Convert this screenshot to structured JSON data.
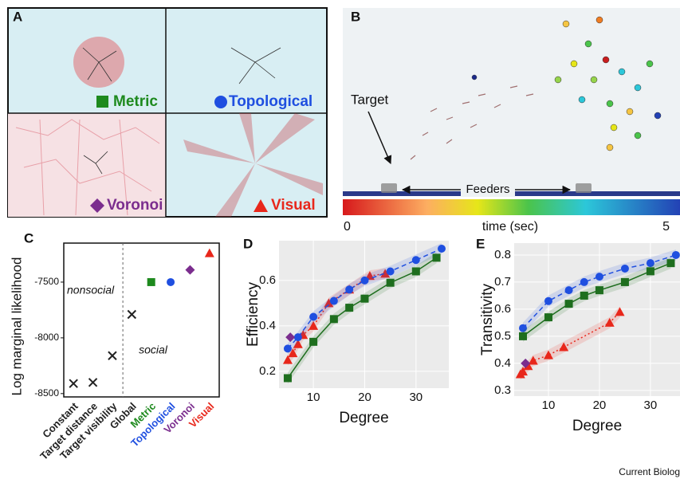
{
  "panels": {
    "a": {
      "letter": "A",
      "labels": [
        "Metric",
        "Topological",
        "Voronoi",
        "Visual"
      ]
    },
    "b": {
      "letter": "B",
      "target": "Target",
      "feeders": "Feeders",
      "colorbar": {
        "min": 0,
        "label": "time (sec)",
        "max": 5
      }
    }
  },
  "credit": "Current Biolog",
  "chart_data": [
    {
      "type": "dot",
      "letter": "C",
      "ylabel": "Log marginal likelihood",
      "categories": [
        "Constant",
        "Target distance",
        "Target visibility",
        "Global",
        "Metric",
        "Topological",
        "Voronoi",
        "Visual"
      ],
      "values": [
        -8410,
        -8400,
        -8160,
        -7790,
        -7500,
        -7500,
        -7390,
        -7240
      ],
      "markers": [
        "cross",
        "cross",
        "cross",
        "cross",
        "square",
        "circle",
        "diamond",
        "triangle"
      ],
      "colors": [
        "#222222",
        "#222222",
        "#222222",
        "#222222",
        "#1e8a1e",
        "#1f4fe0",
        "#7b2d8e",
        "#e8271b"
      ],
      "annotations": [
        "nonsocial",
        "social"
      ],
      "ylim": [
        -8530,
        -7150
      ],
      "yticks": [
        -8500,
        -8000,
        -7500
      ]
    },
    {
      "type": "line",
      "letter": "D",
      "xlabel": "Degree",
      "ylabel": "Efficiency",
      "xlim": [
        3.3,
        36.4
      ],
      "xticks": [
        10,
        20,
        30
      ],
      "ylim": [
        0.126,
        0.775
      ],
      "yticks": [
        0.2,
        0.4,
        0.6
      ],
      "grid": true,
      "series": [
        {
          "marker": "triangle",
          "color": "#e8271b",
          "dash": "dotted",
          "x": [
            5,
            6,
            7,
            8,
            10,
            13,
            17,
            21,
            24
          ],
          "values": [
            0.25,
            0.28,
            0.32,
            0.36,
            0.4,
            0.5,
            0.56,
            0.62,
            0.63
          ]
        },
        {
          "marker": "circle",
          "color": "#1f4fe0",
          "dash": "dashed",
          "x": [
            5,
            7,
            10,
            14,
            17,
            20,
            25,
            30,
            35
          ],
          "values": [
            0.3,
            0.35,
            0.44,
            0.51,
            0.56,
            0.6,
            0.64,
            0.69,
            0.74
          ]
        },
        {
          "marker": "square",
          "color": "#1e6e1e",
          "dash": "solid",
          "x": [
            5,
            10,
            14,
            17,
            20,
            25,
            30,
            34
          ],
          "values": [
            0.17,
            0.33,
            0.43,
            0.48,
            0.52,
            0.59,
            0.64,
            0.7
          ]
        },
        {
          "marker": "diamond",
          "color": "#7b2d8e",
          "dash": "solid",
          "x": [
            5.5
          ],
          "values": [
            0.35
          ]
        }
      ]
    },
    {
      "type": "line",
      "letter": "E",
      "xlabel": "Degree",
      "ylabel": "Transitivity",
      "xlim": [
        3.28,
        35.8
      ],
      "xticks": [
        10,
        20,
        30
      ],
      "ylim": [
        0.279,
        0.844
      ],
      "yticks": [
        0.3,
        0.4,
        0.5,
        0.6,
        0.7,
        0.8
      ],
      "grid": true,
      "series": [
        {
          "marker": "circle",
          "color": "#1f4fe0",
          "dash": "dashed",
          "x": [
            5,
            10,
            14,
            17,
            20,
            25,
            30,
            35
          ],
          "values": [
            0.53,
            0.63,
            0.67,
            0.7,
            0.72,
            0.75,
            0.77,
            0.8
          ]
        },
        {
          "marker": "square",
          "color": "#1e6e1e",
          "dash": "solid",
          "x": [
            5,
            10,
            14,
            17,
            20,
            25,
            30,
            34
          ],
          "values": [
            0.5,
            0.57,
            0.62,
            0.65,
            0.67,
            0.7,
            0.74,
            0.77
          ]
        },
        {
          "marker": "triangle",
          "color": "#e8271b",
          "dash": "dotted",
          "x": [
            4.5,
            5,
            6,
            7,
            10,
            13,
            22,
            24
          ],
          "values": [
            0.36,
            0.37,
            0.39,
            0.41,
            0.43,
            0.46,
            0.55,
            0.59
          ]
        },
        {
          "marker": "diamond",
          "color": "#7b2d8e",
          "dash": "solid",
          "x": [
            5.5
          ],
          "values": [
            0.4
          ]
        }
      ]
    }
  ]
}
